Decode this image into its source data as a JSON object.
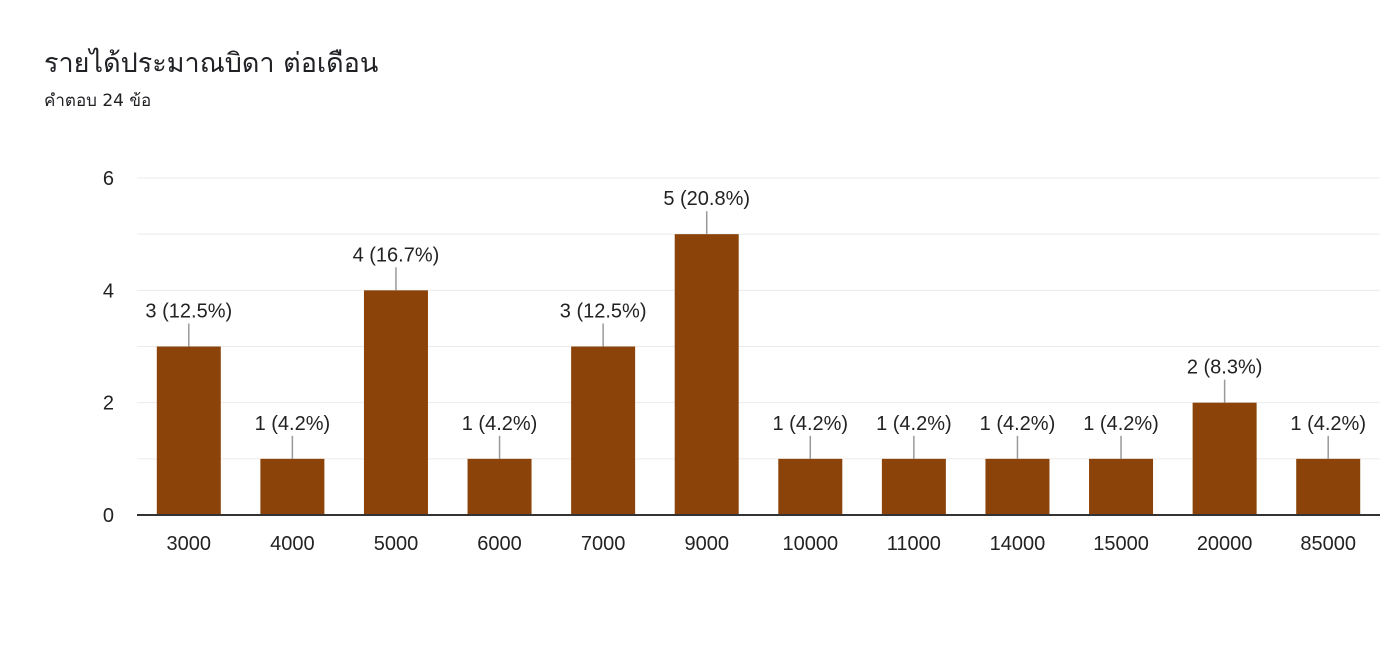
{
  "question": {
    "title": "รายได้ประมาณบิดา  ต่อเดือน",
    "response_count": "คำตอบ 24 ข้อ"
  },
  "colors": {
    "bar": "#8b4309",
    "grid": "#ebebeb",
    "baseline": "#333333",
    "leader": "#999999",
    "text": "#222222"
  },
  "chart_data": {
    "type": "bar",
    "title": "รายได้ประมาณบิดา  ต่อเดือน",
    "categories": [
      "3000",
      "4000",
      "5000",
      "6000",
      "7000",
      "9000",
      "10000",
      "11000",
      "14000",
      "15000",
      "20000",
      "85000"
    ],
    "values": [
      3,
      1,
      4,
      1,
      3,
      5,
      1,
      1,
      1,
      1,
      2,
      1
    ],
    "data_labels": [
      "3 (12.5%)",
      "1 (4.2%)",
      "4 (16.7%)",
      "1 (4.2%)",
      "3 (12.5%)",
      "5 (20.8%)",
      "1 (4.2%)",
      "1 (4.2%)",
      "1 (4.2%)",
      "1 (4.2%)",
      "2 (8.3%)",
      "1 (4.2%)"
    ],
    "ylim": [
      0,
      6
    ],
    "yticks": [
      "0",
      "2",
      "4",
      "6"
    ],
    "xlabel": "",
    "ylabel": "",
    "grid": true,
    "legend": "none"
  }
}
